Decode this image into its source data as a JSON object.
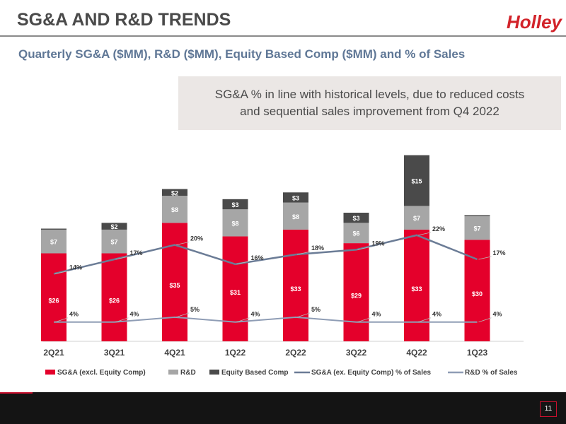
{
  "header": {
    "title": "SG&A AND R&D TRENDS",
    "logo_text": "Holley",
    "subtitle": "Quarterly SG&A ($MM), R&D ($MM), Equity Based Comp ($MM) and % of Sales"
  },
  "callout": {
    "line1": "SG&A % in line with historical levels, due to reduced costs",
    "line2": "and sequential sales improvement from Q4 2022"
  },
  "footer": {
    "page_number": "11"
  },
  "colors": {
    "sga": "#e4002b",
    "rd": "#a6a6a6",
    "equity": "#4a4a4a",
    "sga_pct_line": "#6b7c96",
    "rd_pct_line": "#8f9db5",
    "accent": "#c8102e"
  },
  "chart_data": {
    "type": "bar",
    "stacked": true,
    "categories": [
      "2Q21",
      "3Q21",
      "4Q21",
      "1Q22",
      "2Q22",
      "3Q22",
      "4Q22",
      "1Q23"
    ],
    "series": [
      {
        "name": "SG&A (excl. Equity Comp)",
        "values": [
          26,
          26,
          35,
          31,
          33,
          29,
          33,
          30
        ],
        "labels": [
          "$26",
          "$26",
          "$35",
          "$31",
          "$33",
          "$29",
          "$33",
          "$30"
        ]
      },
      {
        "name": "R&D",
        "values": [
          7,
          7,
          8,
          8,
          8,
          6,
          7,
          7
        ],
        "labels": [
          "$7",
          "$7",
          "$8",
          "$8",
          "$8",
          "$6",
          "$7",
          "$7"
        ]
      },
      {
        "name": "Equity Based Comp",
        "values": [
          0.3,
          2,
          2,
          3,
          3,
          3,
          15,
          0.3
        ],
        "labels": [
          "",
          "$2",
          "$2",
          "$3",
          "$3",
          "$3",
          "$15",
          ""
        ]
      }
    ],
    "lines": [
      {
        "name": "SG&A  (ex. Equity Comp) % of Sales",
        "values": [
          14,
          17,
          20,
          16,
          18,
          19,
          22,
          17
        ],
        "labels": [
          "14%",
          "17%",
          "20%",
          "16%",
          "18%",
          "19%",
          "22%",
          "17%"
        ]
      },
      {
        "name": "R&D % of Sales",
        "values": [
          4,
          4,
          5,
          4,
          5,
          4,
          4,
          4
        ],
        "labels": [
          "4%",
          "4%",
          "5%",
          "4%",
          "5%",
          "4%",
          "4%",
          "4%"
        ]
      }
    ],
    "bar_axis_max": 57,
    "pct_axis_range": [
      0,
      40
    ],
    "legend_position": "bottom"
  }
}
